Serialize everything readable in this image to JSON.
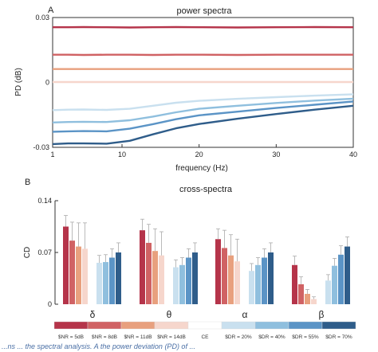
{
  "chart_data": [
    {
      "panel": "A",
      "type": "line",
      "title": "power spectra",
      "xlabel": "frequency (Hz)",
      "ylabel": "PD (dB)",
      "xlim": [
        1,
        40
      ],
      "ylim": [
        -0.03,
        0.03
      ],
      "xticks": [
        "1",
        "10",
        "20",
        "30",
        "40"
      ],
      "yticks": [
        "0.03",
        "0",
        "-0.03"
      ],
      "grid": false,
      "x": [
        1,
        3,
        5,
        8,
        11,
        14,
        17,
        20,
        25,
        30,
        35,
        40
      ],
      "series": [
        {
          "color": "#b5344a",
          "values": [
            0.0255,
            0.0255,
            0.0256,
            0.0255,
            0.0254,
            0.0255,
            0.0256,
            0.0255,
            0.0254,
            0.0255,
            0.0256,
            0.0255
          ]
        },
        {
          "color": "#d06264",
          "values": [
            0.0128,
            0.0128,
            0.0127,
            0.0128,
            0.0128,
            0.0127,
            0.0128,
            0.0128,
            0.0127,
            0.0128,
            0.0128,
            0.0128
          ]
        },
        {
          "color": "#e8a07e",
          "values": [
            0.0062,
            0.0062,
            0.0062,
            0.0062,
            0.0062,
            0.0062,
            0.0062,
            0.0062,
            0.0062,
            0.0062,
            0.0062,
            0.0062
          ]
        },
        {
          "color": "#f6d6cc",
          "values": [
            0.0002,
            0.0002,
            0.0002,
            0.0002,
            0.0002,
            0.0002,
            0.0002,
            0.0002,
            0.0002,
            0.0002,
            0.0002,
            0.0002
          ]
        },
        {
          "color": "#c9e0ef",
          "values": [
            -0.0128,
            -0.0126,
            -0.0125,
            -0.0127,
            -0.0122,
            -0.0108,
            -0.0094,
            -0.0085,
            -0.0076,
            -0.0068,
            -0.0061,
            -0.0055
          ]
        },
        {
          "color": "#8fbfde",
          "values": [
            -0.0185,
            -0.0183,
            -0.0182,
            -0.0183,
            -0.0175,
            -0.0158,
            -0.0138,
            -0.0122,
            -0.0108,
            -0.0095,
            -0.0084,
            -0.0075
          ]
        },
        {
          "color": "#5b94c6",
          "values": [
            -0.0228,
            -0.0226,
            -0.0225,
            -0.0226,
            -0.0214,
            -0.0193,
            -0.017,
            -0.0152,
            -0.0135,
            -0.0118,
            -0.0103,
            -0.0088
          ]
        },
        {
          "color": "#2f5d8a",
          "values": [
            -0.0285,
            -0.0282,
            -0.0282,
            -0.0283,
            -0.027,
            -0.024,
            -0.0212,
            -0.0192,
            -0.0168,
            -0.0146,
            -0.0126,
            -0.0108
          ]
        }
      ]
    },
    {
      "panel": "B",
      "type": "bar",
      "title": "cross-spectra",
      "ylabel": "CD",
      "ylim": [
        0,
        0.14
      ],
      "yticks": [
        "0.14",
        "0.07",
        "0"
      ],
      "categories": [
        "δ",
        "θ",
        "α",
        "β"
      ],
      "grid": false,
      "series": [
        {
          "name": "$NR = 5dB",
          "color": "#b5344a",
          "values": [
            0.105,
            0.1,
            0.088,
            0.053
          ],
          "errors": [
            0.015,
            0.015,
            0.014,
            0.012
          ]
        },
        {
          "name": "$NR = 8dB",
          "color": "#d06264",
          "values": [
            0.086,
            0.083,
            0.076,
            0.027
          ],
          "errors": [
            0.025,
            0.025,
            0.024,
            0.01
          ]
        },
        {
          "name": "$NR = 11dB",
          "color": "#e8a07e",
          "values": [
            0.078,
            0.072,
            0.066,
            0.014
          ],
          "errors": [
            0.032,
            0.03,
            0.028,
            0.006
          ]
        },
        {
          "name": "$NR = 14dB",
          "color": "#f6d6cc",
          "values": [
            0.075,
            0.066,
            0.058,
            0.007
          ],
          "errors": [
            0.035,
            0.032,
            0.03,
            0.003
          ]
        },
        {
          "name": "CE",
          "color": "#ffffff",
          "values": [
            0,
            0,
            0,
            0
          ],
          "errors": [
            0,
            0,
            0,
            0
          ]
        },
        {
          "name": "$DR = 20%",
          "color": "#c9e0ef",
          "values": [
            0.056,
            0.05,
            0.045,
            0.032
          ],
          "errors": [
            0.01,
            0.01,
            0.01,
            0.008
          ]
        },
        {
          "name": "$DR = 40%",
          "color": "#8fbfde",
          "values": [
            0.057,
            0.053,
            0.053,
            0.052
          ],
          "errors": [
            0.01,
            0.01,
            0.01,
            0.01
          ]
        },
        {
          "name": "$DR = 55%",
          "color": "#5b94c6",
          "values": [
            0.063,
            0.063,
            0.063,
            0.067
          ],
          "errors": [
            0.012,
            0.012,
            0.012,
            0.012
          ]
        },
        {
          "name": "$DR = 70%",
          "color": "#2f5d8a",
          "values": [
            0.07,
            0.07,
            0.07,
            0.078
          ],
          "errors": [
            0.013,
            0.013,
            0.013,
            0.013
          ]
        }
      ]
    }
  ],
  "caption_fragment": "...ns ... the spectral analysis. A the power deviation (PD) of ... "
}
